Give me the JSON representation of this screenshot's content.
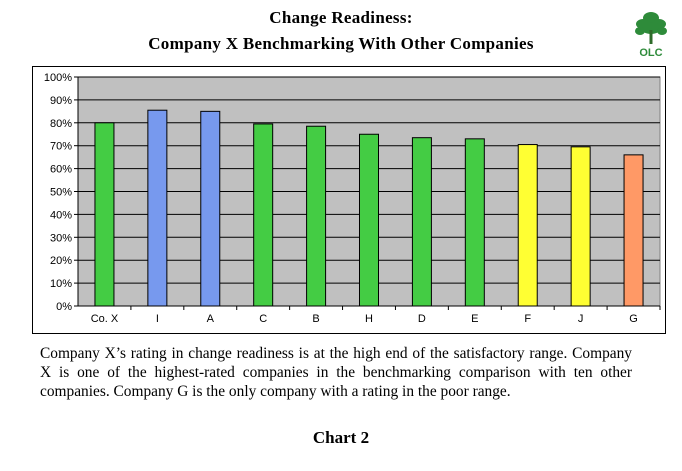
{
  "header": {
    "title_line1": "Change Readiness:",
    "title_line2": "Company X Benchmarking With Other Companies",
    "logo_text": "OLC"
  },
  "chart_data": {
    "type": "bar",
    "categories": [
      "Co. X",
      "I",
      "A",
      "C",
      "B",
      "H",
      "D",
      "E",
      "F",
      "J",
      "G"
    ],
    "values": [
      80,
      85.5,
      85,
      79.5,
      78.5,
      75,
      73.5,
      73,
      70.5,
      69.5,
      66
    ],
    "bar_colors": [
      "#44cc44",
      "#7799ee",
      "#7799ee",
      "#44cc44",
      "#44cc44",
      "#44cc44",
      "#44cc44",
      "#44cc44",
      "#ffff33",
      "#ffff33",
      "#ff9966"
    ],
    "ylim": [
      0,
      100
    ],
    "yticks": [
      "0%",
      "10%",
      "20%",
      "30%",
      "40%",
      "50%",
      "60%",
      "70%",
      "80%",
      "90%",
      "100%"
    ],
    "grid": true,
    "plot_background": "#c0c0c0",
    "title": "",
    "xlabel": "",
    "ylabel": ""
  },
  "caption": "Company X’s rating in change readiness is at the high end of the satisfactory range.  Company X is one of the highest-rated companies in the benchmarking comparison with ten other companies.  Company G is the only company with a rating in the poor range.",
  "chart_label": "Chart 2"
}
